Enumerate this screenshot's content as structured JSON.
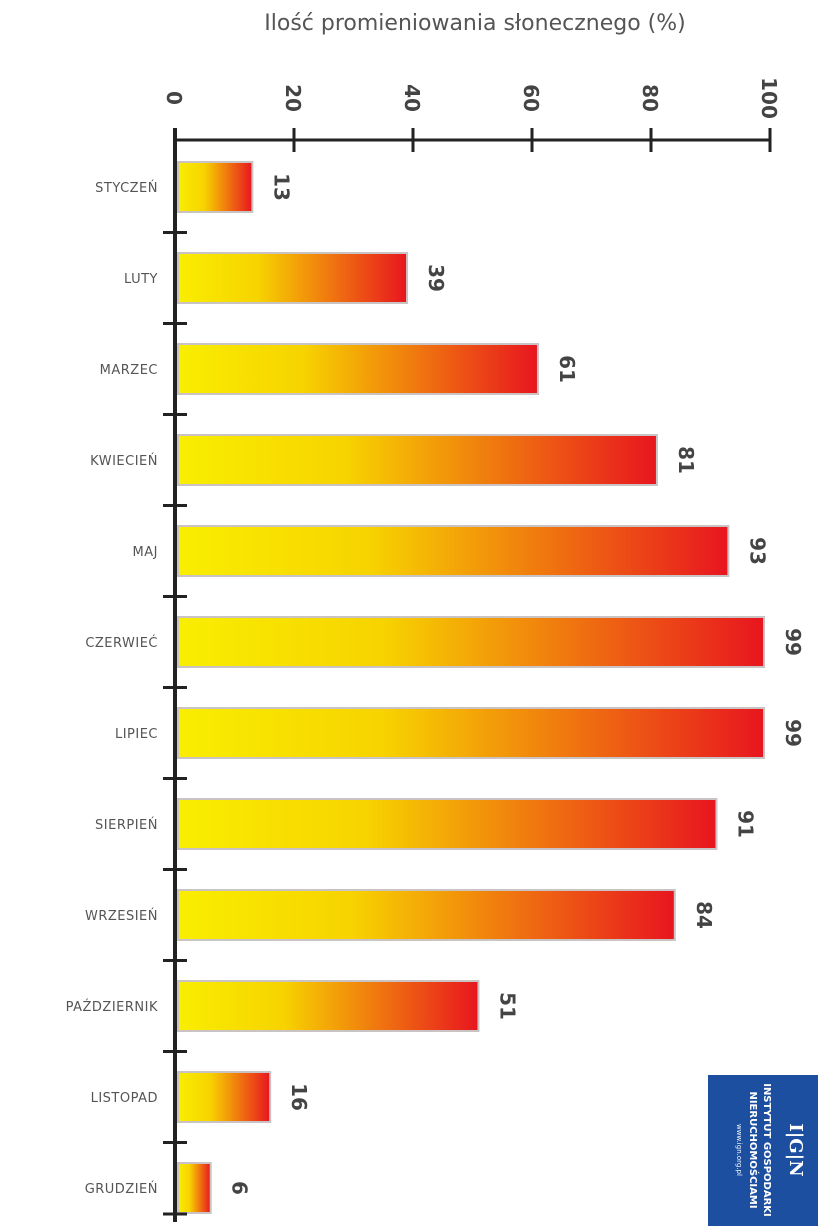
{
  "chart_data": {
    "type": "bar",
    "title": "Ilość promieniowania słonecznego (%)",
    "xlabel": "",
    "ylabel": "",
    "categories": [
      "STYCZEŃ",
      "LUTY",
      "MARZEC",
      "KWIECIEŃ",
      "MAJ",
      "CZERWIEĆ",
      "LIPIEC",
      "SIERPIEŃ",
      "WRZESIEŃ",
      "PAŹDZIERNIK",
      "LISTOPAD",
      "GRUDZIEŃ"
    ],
    "values": [
      13,
      39,
      61,
      81,
      93,
      99,
      99,
      91,
      84,
      51,
      16,
      6
    ],
    "ylim": [
      0,
      100
    ],
    "ticks": [
      "0",
      "20",
      "40",
      "60",
      "80",
      "100"
    ],
    "grid": false,
    "colors": {
      "bar_start": "#f7e600",
      "bar_end": "#e8151f",
      "axis": "#222222"
    }
  },
  "logo": {
    "mark": "I|G|N",
    "line1": "INSTYTUT GOSPODARKI",
    "line2": "NIERUCHOMOŚCIAMI",
    "url": "www.ign.org.pl",
    "color": "#1c4fa0"
  }
}
